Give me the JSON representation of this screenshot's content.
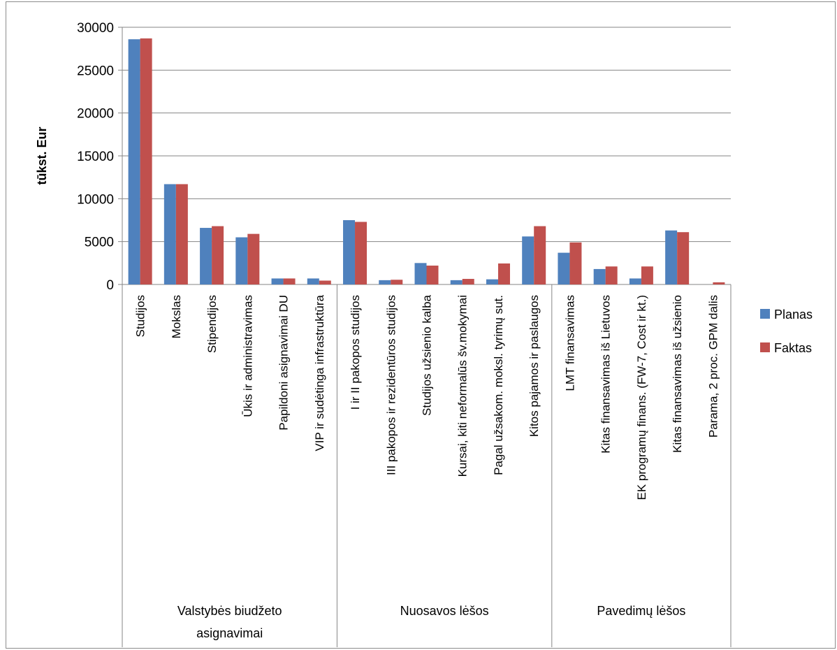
{
  "chart_data": {
    "type": "bar",
    "ylabel": "tūkst. Eur",
    "ylim": [
      0,
      30000
    ],
    "yticks": [
      0,
      5000,
      10000,
      15000,
      20000,
      25000,
      30000
    ],
    "grid": true,
    "legend_position": "right",
    "categories": [
      "Studijos",
      "Mokslas",
      "Stipendijos",
      "Ūkis ir administravimas",
      "Papildoni asignavimai DU",
      "VIP ir sudėtinga infrastruktūra",
      "I ir II pakopos studijos",
      "III pakopos ir rezidentūros studijos",
      "Studijos užsienio kalba",
      "Kursai, kiti neformalūs  šv.mokymai",
      "Pagal užsakom. moksl. tyrimų sut.",
      "Kitos pajamos ir paslaugos",
      "LMT finansavimas",
      "Kitas finansavimas iš Lietuvos",
      "EK programų finans. (FW-7, Cost ir kt.)",
      "Kitas finansavimas iš užsienio",
      "Parama, 2 proc. GPM dalis"
    ],
    "groups": [
      {
        "label_lines": [
          "Valstybės biudžeto",
          "asignavimai"
        ],
        "count": 6
      },
      {
        "label_lines": [
          "Nuosavos lėšos"
        ],
        "count": 6
      },
      {
        "label_lines": [
          "Pavedimų lėšos"
        ],
        "count": 5
      }
    ],
    "series": [
      {
        "name": "Planas",
        "color": "#4f81bd",
        "values": [
          28600,
          11700,
          6600,
          5500,
          700,
          700,
          7500,
          500,
          2500,
          500,
          600,
          5600,
          3700,
          1800,
          700,
          6300,
          0
        ]
      },
      {
        "name": "Faktas",
        "color": "#c0504d",
        "values": [
          28700,
          11700,
          6800,
          5900,
          700,
          450,
          7300,
          550,
          2200,
          650,
          2450,
          6800,
          4900,
          2100,
          2100,
          6100,
          250
        ]
      }
    ]
  }
}
